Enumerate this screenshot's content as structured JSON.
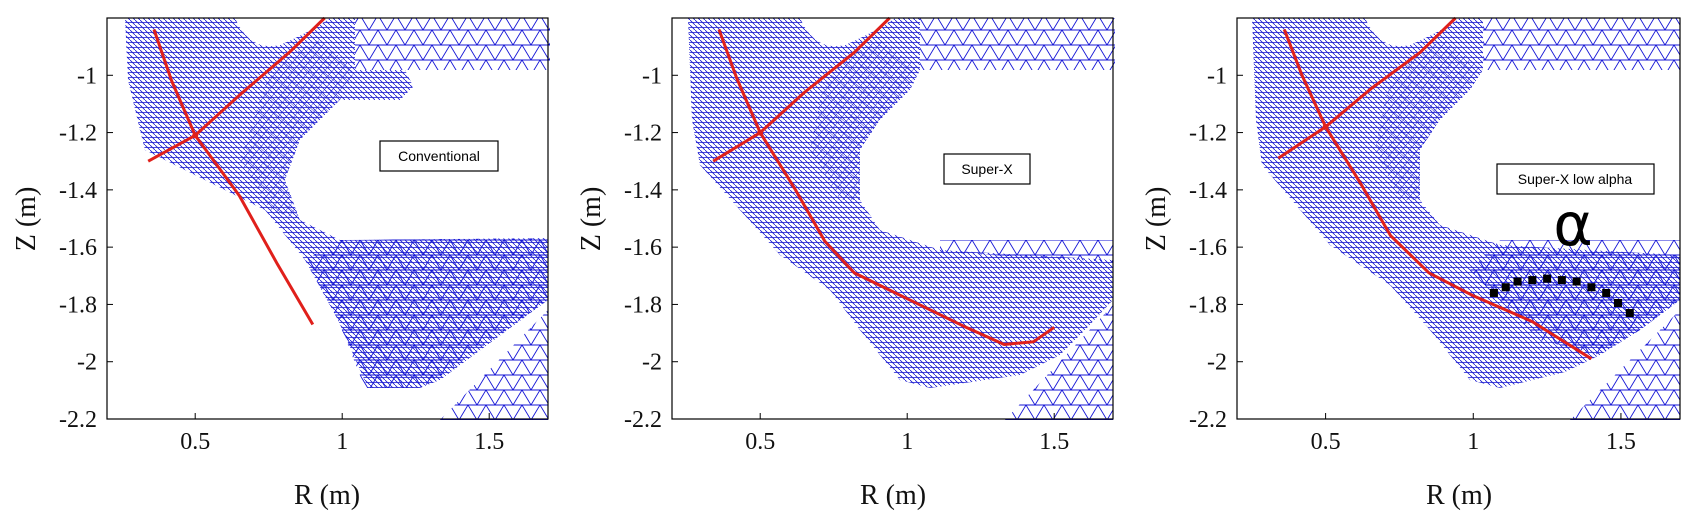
{
  "chart_data": [
    {
      "type": "mesh",
      "annotation": "Conventional",
      "xlabel": "R (m)",
      "ylabel": "Z (m)",
      "xlim": [
        0.2,
        1.7
      ],
      "ylim": [
        -2.2,
        -0.8
      ],
      "xticks": [
        "0.5",
        "1",
        "1.5"
      ],
      "yticks": [
        "-1",
        "-1.2",
        "-1.4",
        "-1.6",
        "-1.8",
        "-2",
        "-2.2"
      ],
      "xpoint": [
        0.5,
        -1.21
      ],
      "separatrix": [
        {
          "name": "leg_inner",
          "points": [
            [
              0.5,
              -1.21
            ],
            [
              0.42,
              -1.02
            ],
            [
              0.36,
              -0.84
            ]
          ]
        },
        {
          "name": "leg_outer_up",
          "points": [
            [
              0.5,
              -1.21
            ],
            [
              0.65,
              -1.07
            ],
            [
              0.82,
              -0.92
            ],
            [
              0.94,
              -0.8
            ]
          ]
        },
        {
          "name": "leg_left",
          "points": [
            [
              0.5,
              -1.21
            ],
            [
              0.34,
              -1.3
            ]
          ]
        },
        {
          "name": "divertor_leg",
          "points": [
            [
              0.5,
              -1.21
            ],
            [
              0.65,
              -1.42
            ],
            [
              0.78,
              -1.66
            ],
            [
              0.9,
              -1.87
            ]
          ]
        }
      ],
      "color": "#e0201b",
      "mesh_color": "#1212cc"
    },
    {
      "type": "mesh",
      "annotation": "Super-X",
      "xlabel": "R (m)",
      "ylabel": "Z (m)",
      "xlim": [
        0.2,
        1.7
      ],
      "ylim": [
        -2.2,
        -0.8
      ],
      "xticks": [
        "0.5",
        "1",
        "1.5"
      ],
      "yticks": [
        "-1",
        "-1.2",
        "-1.4",
        "-1.6",
        "-1.8",
        "-2",
        "-2.2"
      ],
      "xpoint": [
        0.5,
        -1.2
      ],
      "separatrix": [
        {
          "name": "leg_inner",
          "points": [
            [
              0.5,
              -1.2
            ],
            [
              0.42,
              -1.01
            ],
            [
              0.36,
              -0.84
            ]
          ]
        },
        {
          "name": "leg_outer_up",
          "points": [
            [
              0.5,
              -1.2
            ],
            [
              0.65,
              -1.06
            ],
            [
              0.82,
              -0.92
            ],
            [
              0.94,
              -0.8
            ]
          ]
        },
        {
          "name": "leg_left",
          "points": [
            [
              0.5,
              -1.2
            ],
            [
              0.34,
              -1.3
            ]
          ]
        },
        {
          "name": "divertor_leg",
          "points": [
            [
              0.5,
              -1.2
            ],
            [
              0.62,
              -1.4
            ],
            [
              0.72,
              -1.58
            ],
            [
              0.82,
              -1.69
            ],
            [
              1.0,
              -1.78
            ],
            [
              1.2,
              -1.88
            ],
            [
              1.33,
              -1.94
            ],
            [
              1.43,
              -1.93
            ],
            [
              1.5,
              -1.88
            ]
          ]
        }
      ],
      "color": "#e0201b",
      "mesh_color": "#1212cc"
    },
    {
      "type": "mesh",
      "annotation": "Super-X low alpha",
      "symbol": "α",
      "xlabel": "R (m)",
      "ylabel": "Z (m)",
      "xlim": [
        0.2,
        1.7
      ],
      "ylim": [
        -2.2,
        -0.8
      ],
      "xticks": [
        "0.5",
        "1",
        "1.5"
      ],
      "yticks": [
        "-1",
        "-1.2",
        "-1.4",
        "-1.6",
        "-1.8",
        "-2",
        "-2.2"
      ],
      "xpoint": [
        0.5,
        -1.18
      ],
      "separatrix": [
        {
          "name": "leg_inner",
          "points": [
            [
              0.5,
              -1.18
            ],
            [
              0.42,
              -1.0
            ],
            [
              0.36,
              -0.84
            ]
          ]
        },
        {
          "name": "leg_outer_up",
          "points": [
            [
              0.5,
              -1.18
            ],
            [
              0.65,
              -1.05
            ],
            [
              0.82,
              -0.92
            ],
            [
              0.94,
              -0.8
            ]
          ]
        },
        {
          "name": "leg_left",
          "points": [
            [
              0.5,
              -1.18
            ],
            [
              0.34,
              -1.29
            ]
          ]
        },
        {
          "name": "divertor_leg",
          "points": [
            [
              0.5,
              -1.18
            ],
            [
              0.62,
              -1.38
            ],
            [
              0.72,
              -1.56
            ],
            [
              0.85,
              -1.69
            ],
            [
              1.0,
              -1.77
            ],
            [
              1.2,
              -1.86
            ],
            [
              1.4,
              -1.99
            ]
          ]
        }
      ],
      "alpha_arc": [
        [
          1.07,
          -1.76
        ],
        [
          1.15,
          -1.72
        ],
        [
          1.25,
          -1.71
        ],
        [
          1.35,
          -1.72
        ],
        [
          1.45,
          -1.76
        ],
        [
          1.53,
          -1.83
        ]
      ],
      "color": "#e0201b",
      "mesh_color": "#1212cc"
    }
  ]
}
